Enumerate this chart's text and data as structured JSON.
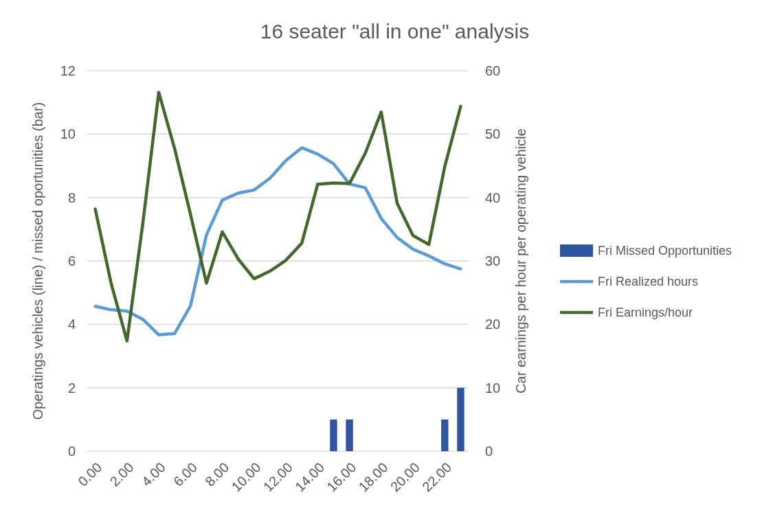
{
  "chart_data": {
    "type": "line",
    "title": "16 seater \"all in one\" analysis",
    "ylabel": "Operatings vehicles (line) / missed oportunities (bar)",
    "y2label": "Car earnings per hour per operating vehicle",
    "categories": [
      "0.00",
      null,
      "2.00",
      null,
      "4.00",
      null,
      "6.00",
      null,
      "8.00",
      null,
      "10.00",
      null,
      "12.00",
      null,
      "14.00",
      null,
      "16.00",
      null,
      "18.00",
      null,
      "20.00",
      null,
      "22.00",
      null
    ],
    "series": [
      {
        "name": "Fri Missed Opportunities",
        "type": "bar",
        "color": "#2f55a0",
        "values": [
          0,
          0,
          0,
          0,
          0,
          0,
          0,
          0,
          0,
          0,
          0,
          0,
          0,
          0,
          0,
          1,
          1,
          0,
          0,
          0,
          0,
          0,
          1,
          2
        ]
      },
      {
        "name": "Fri Realized hours",
        "color": "#5b9bd5",
        "values": [
          4.57,
          4.46,
          4.42,
          4.16,
          3.67,
          3.71,
          4.59,
          6.82,
          7.92,
          8.14,
          8.24,
          8.61,
          9.17,
          9.57,
          9.37,
          9.07,
          8.43,
          8.31,
          7.34,
          6.74,
          6.37,
          6.16,
          5.91,
          5.75
        ]
      },
      {
        "name": "Fri Earnings/hour",
        "type": "line",
        "axis": "y2",
        "color": "#43682b",
        "values": [
          38.2,
          26.5,
          17.4,
          36.0,
          56.6,
          47.7,
          37.3,
          26.5,
          34.6,
          30.3,
          27.2,
          28.4,
          30.1,
          32.8,
          42.1,
          42.3,
          42.2,
          47.0,
          53.5,
          39.1,
          34.0,
          32.6,
          44.9,
          54.4
        ]
      }
    ],
    "ylim": [
      0,
      12
    ],
    "yticks": [
      0,
      2,
      4,
      6,
      8,
      10,
      12
    ],
    "y2lim": [
      0,
      60
    ],
    "y2ticks": [
      0,
      10,
      20,
      30,
      40,
      50,
      60
    ],
    "grid": "y",
    "legend": "right",
    "line_style": "solid",
    "marker": "none"
  }
}
